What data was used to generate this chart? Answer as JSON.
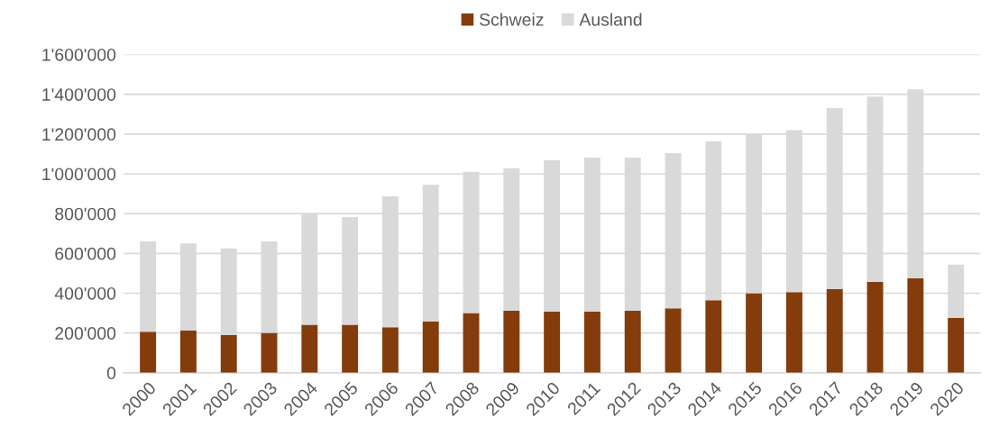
{
  "chart_data": {
    "type": "bar",
    "stacked": true,
    "categories": [
      "2000",
      "2001",
      "2002",
      "2003",
      "2004",
      "2005",
      "2006",
      "2007",
      "2008",
      "2009",
      "2010",
      "2011",
      "2012",
      "2013",
      "2014",
      "2015",
      "2016",
      "2017",
      "2018",
      "2019",
      "2020"
    ],
    "series": [
      {
        "name": "Schweiz",
        "color": "#843c0c",
        "values": [
          206000,
          212000,
          189000,
          201000,
          242000,
          242000,
          229000,
          259000,
          300000,
          312000,
          307000,
          307000,
          312000,
          324000,
          365000,
          400000,
          406000,
          422000,
          457000,
          475000,
          277000
        ]
      },
      {
        "name": "Ausland",
        "color": "#d9d9d9",
        "values": [
          454000,
          438000,
          436000,
          459000,
          559000,
          541000,
          658000,
          687000,
          710000,
          716000,
          762000,
          774000,
          769000,
          780000,
          798000,
          804000,
          814000,
          909000,
          931000,
          950000,
          267000
        ]
      }
    ],
    "ylim": [
      0,
      1600000
    ],
    "yticks": [
      0,
      {
        "value": 200000,
        "label": "200'000"
      },
      {
        "value": 400000,
        "label": "400'000"
      },
      {
        "value": 600000,
        "label": "600'000"
      },
      {
        "value": 800000,
        "label": "800'000"
      },
      {
        "value": 1000000,
        "label": "1'000'000"
      },
      {
        "value": 1200000,
        "label": "1'200'000"
      },
      {
        "value": 1400000,
        "label": "1'400'000"
      },
      {
        "value": 1600000,
        "label": "1'600'000"
      }
    ],
    "grid": "y",
    "legend": "top"
  }
}
